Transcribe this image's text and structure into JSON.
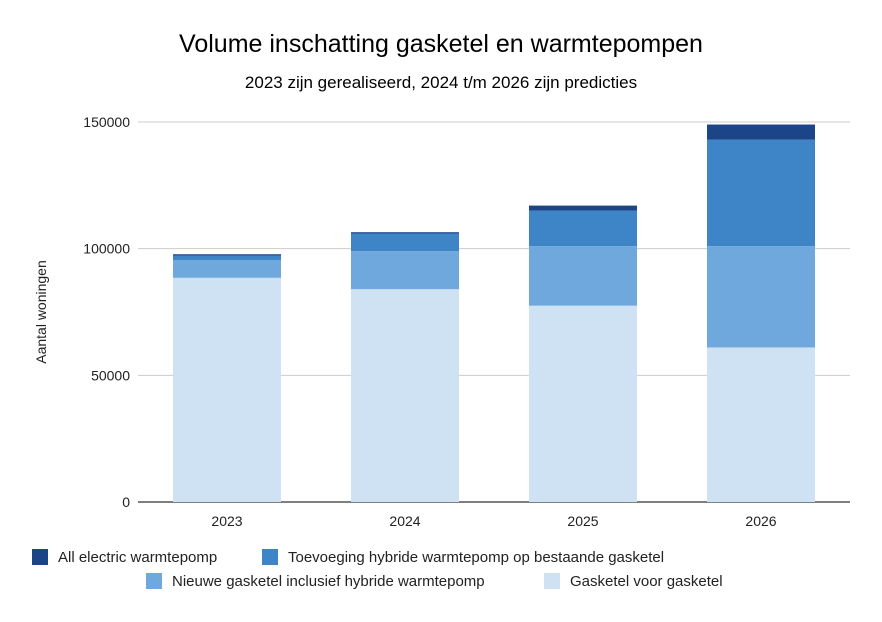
{
  "chart_data": {
    "type": "bar",
    "stacked": true,
    "title": "Volume inschatting gasketel en warmtepompen",
    "subtitle": "2023 zijn gerealiseerd, 2024 t/m 2026 zijn predicties",
    "xlabel": "",
    "ylabel": "Aantal woningen",
    "ylim": [
      0,
      150000
    ],
    "yticks": [
      0,
      50000,
      100000,
      150000
    ],
    "grid": true,
    "legend_position": "bottom",
    "categories": [
      "2023",
      "2024",
      "2025",
      "2026"
    ],
    "series": [
      {
        "name": "Gasketel voor gasketel",
        "color": "#cfe2f3",
        "values": [
          88500,
          84000,
          77500,
          61000
        ]
      },
      {
        "name": "Nieuwe gasketel inclusief hybride warmtepomp",
        "color": "#6fa8dc",
        "values": [
          7000,
          15000,
          23500,
          40000
        ]
      },
      {
        "name": "Toevoeging hybride warmtepomp op bestaande gasketel",
        "color": "#3d85c6",
        "values": [
          1700,
          7000,
          14000,
          42000
        ]
      },
      {
        "name": "All electric warmtepomp",
        "color": "#1c4587",
        "values": [
          600,
          500,
          2000,
          6000
        ]
      }
    ],
    "legend_order": [
      3,
      2,
      1,
      0
    ]
  }
}
